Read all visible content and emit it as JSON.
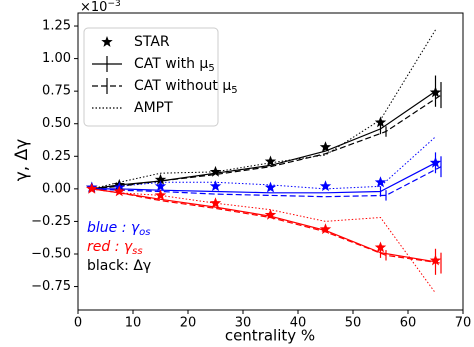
{
  "chart_data": {
    "type": "line",
    "y_label": "γ, Δγ",
    "x_label": "centrality %",
    "y_offset": {
      "base": "×10",
      "exponent": "−3"
    },
    "xlim": [
      0,
      70
    ],
    "xticks": [
      0,
      10,
      20,
      30,
      40,
      50,
      60,
      70
    ],
    "ylim": [
      -0.93,
      1.35
    ],
    "yticks": [
      {
        "value": -0.75,
        "label": "−0.75"
      },
      {
        "value": -0.5,
        "label": "−0.50"
      },
      {
        "value": -0.25,
        "label": "−0.25"
      },
      {
        "value": 0,
        "label": "0.00"
      },
      0.25,
      {
        "value": 0.5,
        "label": "0.50"
      },
      0.75,
      {
        "value": 1,
        "label": "1.00"
      },
      1.25
    ],
    "annotations": [
      {
        "label": "blue",
        "text": " : γ",
        "subscript": "os",
        "color": "#0000ff",
        "italic": true
      },
      {
        "label": "red",
        "text": " : γ",
        "subscript": "ss",
        "color": "#ff0000",
        "italic": true
      },
      {
        "label": "black",
        "text": ": Δγ",
        "color": "#000000",
        "italic": false
      }
    ],
    "groups": [
      {
        "name": "STAR",
        "style": "star",
        "curves": [
          {
            "color": "#000000",
            "x": [
              2.5,
              7.5,
              15,
              25,
              35,
              45,
              55,
              65
            ],
            "values": [
              0.01,
              0.03,
              0.07,
              0.13,
              0.21,
              0.32,
              0.51,
              0.74
            ]
          },
          {
            "color": "#0000ff",
            "x": [
              2.5,
              7.5,
              15,
              25,
              35,
              45,
              55,
              65
            ],
            "values": [
              0.01,
              0.01,
              0.02,
              0.02,
              0.01,
              0.02,
              0.05,
              0.2
            ]
          },
          {
            "color": "#ff0000",
            "x": [
              2.5,
              7.5,
              15,
              25,
              35,
              45,
              55,
              65
            ],
            "values": [
              0.0,
              -0.02,
              -0.05,
              -0.11,
              -0.2,
              -0.31,
              -0.45,
              -0.55
            ]
          }
        ]
      },
      {
        "name": "CAT with μ",
        "subscript": "5",
        "style": "solid",
        "curves": [
          {
            "color": "#000000",
            "x": [
              2.5,
              7.5,
              15,
              25,
              35,
              45,
              55,
              65
            ],
            "values": [
              0.0,
              0.03,
              0.06,
              0.12,
              0.18,
              0.29,
              0.46,
              0.75
            ],
            "errors": [
              null,
              null,
              null,
              null,
              null,
              null,
              0.04,
              0.12
            ]
          },
          {
            "color": "#0000ff",
            "x": [
              2.5,
              7.5,
              15,
              25,
              35,
              45,
              55,
              65
            ],
            "values": [
              0.0,
              0.0,
              -0.01,
              -0.02,
              -0.03,
              -0.03,
              -0.02,
              0.2
            ],
            "errors": [
              null,
              null,
              null,
              null,
              null,
              null,
              0.04,
              0.08
            ]
          },
          {
            "color": "#ff0000",
            "x": [
              2.5,
              7.5,
              15,
              25,
              35,
              45,
              55,
              65
            ],
            "values": [
              0.0,
              -0.03,
              -0.08,
              -0.14,
              -0.21,
              -0.32,
              -0.49,
              -0.56
            ],
            "errors": [
              null,
              null,
              null,
              null,
              null,
              null,
              0.04,
              0.1
            ]
          }
        ]
      },
      {
        "name": "CAT without μ",
        "subscript": "5",
        "style": "dashed",
        "curves": [
          {
            "color": "#000000",
            "x": [
              2.5,
              7.5,
              15,
              25,
              35,
              45,
              56,
              66
            ],
            "values": [
              0.0,
              0.02,
              0.06,
              0.11,
              0.17,
              0.27,
              0.44,
              0.72
            ],
            "errors": [
              null,
              null,
              null,
              null,
              null,
              null,
              0.04,
              0.1
            ]
          },
          {
            "color": "#0000ff",
            "x": [
              2.5,
              7.5,
              15,
              25,
              35,
              45,
              56,
              66
            ],
            "values": [
              0.0,
              -0.01,
              -0.02,
              -0.04,
              -0.05,
              -0.06,
              -0.05,
              0.17
            ],
            "errors": [
              null,
              null,
              null,
              null,
              null,
              null,
              0.04,
              0.08
            ]
          },
          {
            "color": "#ff0000",
            "x": [
              2.5,
              7.5,
              15,
              25,
              35,
              45,
              56,
              66
            ],
            "values": [
              0.0,
              -0.03,
              -0.09,
              -0.15,
              -0.22,
              -0.33,
              -0.51,
              -0.57
            ],
            "errors": [
              null,
              null,
              null,
              null,
              null,
              null,
              0.04,
              0.08
            ]
          }
        ]
      },
      {
        "name": "AMPT",
        "style": "dotted",
        "curves": [
          {
            "color": "#000000",
            "x": [
              2.5,
              7.5,
              15,
              25,
              35,
              45,
              55,
              65
            ],
            "values": [
              0.0,
              0.05,
              0.12,
              0.13,
              0.2,
              0.26,
              0.53,
              1.22
            ]
          },
          {
            "color": "#0000ff",
            "x": [
              2.5,
              7.5,
              15,
              25,
              35,
              45,
              55,
              65
            ],
            "values": [
              0.0,
              0.02,
              0.05,
              0.05,
              0.03,
              0.0,
              0.02,
              0.4
            ]
          },
          {
            "color": "#ff0000",
            "x": [
              2.5,
              7.5,
              15,
              25,
              35,
              45,
              55,
              65
            ],
            "values": [
              0.0,
              -0.03,
              -0.05,
              -0.11,
              -0.16,
              -0.25,
              -0.22,
              -0.8
            ]
          }
        ]
      }
    ]
  }
}
